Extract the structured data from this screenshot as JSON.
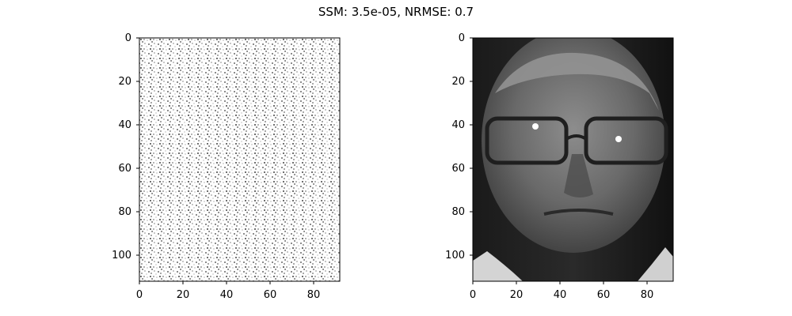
{
  "figure": {
    "title": "SSM: 3.5e-05, NRMSE: 0.7"
  },
  "chart_data": [
    {
      "type": "heatmap",
      "title": "",
      "xlabel": "",
      "ylabel": "",
      "colormap": "gray",
      "image_width": 92,
      "image_height": 112,
      "xlim": [
        0,
        92
      ],
      "ylim": [
        112,
        0
      ],
      "xticks": [
        0,
        20,
        40,
        60,
        80
      ],
      "yticks": [
        0,
        20,
        40,
        60,
        80,
        100
      ],
      "content": "random noise, mostly white with light and dark gray speckles"
    },
    {
      "type": "heatmap",
      "title": "",
      "xlabel": "",
      "ylabel": "",
      "colormap": "gray",
      "image_width": 92,
      "image_height": 112,
      "xlim": [
        0,
        92
      ],
      "ylim": [
        112,
        0
      ],
      "xticks": [
        0,
        20,
        40,
        60,
        80
      ],
      "yticks": [
        0,
        20,
        40,
        60,
        80,
        100
      ],
      "content": "grayscale face photograph of an older man wearing glasses"
    }
  ]
}
